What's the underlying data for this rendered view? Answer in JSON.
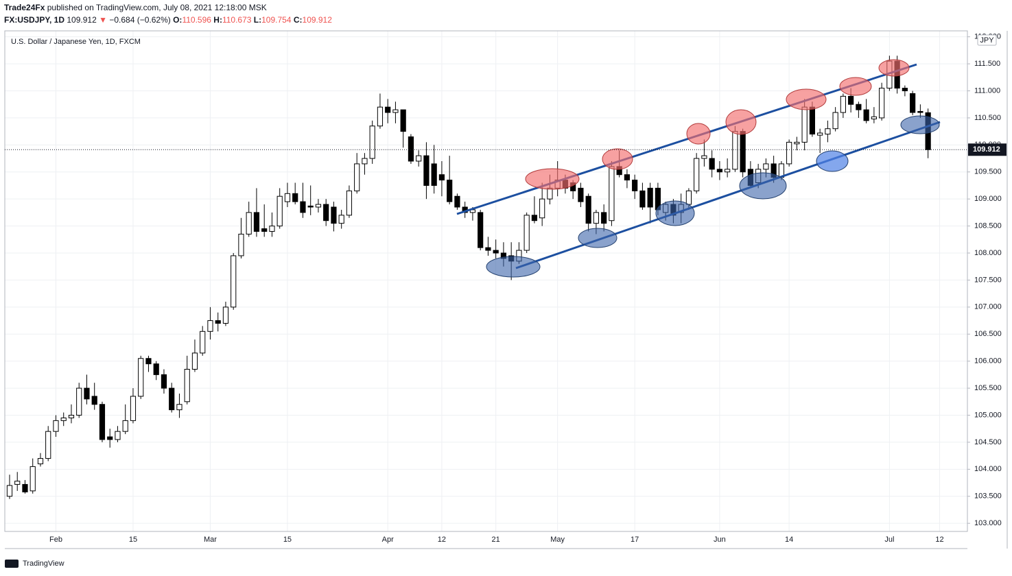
{
  "chart_data": {
    "type": "candlestick",
    "publisher": "Trade24Fx",
    "published": "published on TradingView.com, July 08, 2021 12:18:00 MSK",
    "symbol": "FX:USDJPY, 1D",
    "change_arrow": "▼",
    "change": "−0.684 (−0.62%)",
    "ohlc_labels": [
      "O:",
      "H:",
      "L:",
      "C:"
    ],
    "legend": "U.S. Dollar / Japanese Yen, 1D, FXCM",
    "currency": "JPY",
    "brand": "TradingView",
    "up_color": "#ffffff",
    "down_color": "#000000",
    "grid": true,
    "open": [
      103.5,
      103.72,
      103.72,
      103.6,
      104.1,
      104.2,
      104.7,
      104.9,
      104.95,
      105.0,
      105.5,
      105.35,
      105.2,
      104.6,
      104.55,
      104.7,
      104.9,
      105.35,
      106.05,
      105.95,
      105.75,
      105.5,
      105.1,
      105.25,
      105.85,
      106.15,
      106.55,
      106.75,
      106.7,
      107.0,
      107.95,
      108.35,
      108.75,
      108.45,
      108.4,
      108.5,
      108.95,
      109.1,
      108.95,
      108.87,
      108.85,
      108.9,
      108.85,
      108.55,
      108.7,
      109.15,
      109.65,
      109.75,
      110.35,
      110.7,
      110.6,
      110.65,
      110.15,
      109.7,
      109.8,
      109.65,
      109.45,
      109.35,
      109.05,
      108.85,
      108.75,
      108.75,
      108.1,
      108.05,
      108.0,
      107.95,
      107.85,
      108.05,
      108.7,
      108.65,
      109.0,
      109.2,
      109.35,
      109.3,
      109.2,
      109.05,
      108.55,
      108.75,
      108.6,
      109.6,
      109.45,
      109.35,
      109.15,
      109.2,
      109.2,
      108.75,
      108.9,
      108.75,
      108.9,
      109.15,
      109.75,
      109.75,
      109.55,
      109.5,
      109.55,
      110.25,
      109.55,
      109.3,
      109.55,
      109.65,
      109.4,
      109.65,
      110.02,
      110.05,
      110.7,
      110.18,
      110.2,
      110.3,
      110.6,
      110.9,
      110.75,
      110.65,
      110.48,
      110.5,
      111.05,
      111.55,
      111.05,
      110.95,
      110.62,
      110.596
    ],
    "high": [
      103.9,
      103.95,
      103.8,
      104.2,
      104.3,
      104.8,
      105.0,
      105.05,
      105.2,
      105.6,
      105.75,
      105.6,
      105.25,
      104.75,
      104.8,
      105.2,
      105.5,
      106.1,
      106.1,
      106.0,
      105.85,
      105.6,
      105.4,
      106.1,
      106.4,
      106.65,
      107.0,
      106.9,
      107.1,
      108.0,
      108.65,
      108.95,
      109.2,
      108.9,
      108.75,
      109.2,
      109.3,
      109.3,
      109.3,
      109.25,
      109.0,
      109.0,
      108.95,
      108.8,
      109.25,
      109.85,
      109.85,
      110.45,
      110.95,
      110.85,
      110.8,
      110.65,
      110.2,
      109.9,
      110.05,
      110.0,
      109.7,
      109.8,
      109.1,
      108.95,
      108.85,
      108.8,
      108.3,
      108.25,
      108.2,
      108.2,
      108.2,
      108.75,
      109.05,
      109.3,
      109.45,
      109.7,
      109.45,
      109.35,
      109.3,
      109.1,
      108.8,
      108.9,
      109.7,
      109.9,
      109.55,
      109.45,
      109.3,
      109.3,
      109.3,
      108.95,
      109.0,
      109.1,
      109.2,
      109.85,
      110.1,
      109.9,
      109.7,
      109.75,
      110.35,
      110.3,
      109.7,
      109.65,
      109.75,
      109.8,
      109.7,
      110.1,
      110.15,
      110.85,
      110.8,
      110.3,
      110.45,
      110.7,
      110.95,
      111.05,
      110.8,
      110.85,
      110.7,
      111.15,
      111.65,
      111.65,
      111.1,
      111.0,
      110.75,
      110.673
    ],
    "low": [
      103.45,
      103.6,
      103.55,
      103.55,
      104.05,
      104.15,
      104.6,
      104.8,
      104.85,
      104.95,
      105.2,
      105.1,
      104.5,
      104.4,
      104.5,
      104.65,
      104.85,
      105.3,
      105.8,
      105.65,
      105.4,
      105.05,
      104.95,
      105.2,
      105.8,
      106.1,
      106.4,
      106.55,
      106.65,
      106.95,
      107.9,
      108.3,
      108.3,
      108.3,
      108.3,
      108.45,
      108.85,
      108.9,
      108.65,
      108.7,
      108.75,
      108.5,
      108.4,
      108.45,
      108.65,
      109.1,
      109.45,
      109.65,
      110.3,
      110.4,
      110.4,
      109.95,
      109.65,
      109.6,
      109.0,
      109.1,
      109.05,
      108.9,
      108.8,
      108.65,
      108.6,
      108.05,
      107.95,
      107.9,
      107.75,
      107.5,
      107.8,
      108.0,
      108.55,
      108.5,
      108.9,
      109.05,
      109.1,
      109.0,
      108.85,
      108.4,
      108.35,
      108.4,
      108.5,
      109.4,
      109.2,
      109.0,
      108.8,
      108.55,
      108.7,
      108.6,
      108.55,
      108.55,
      108.8,
      109.1,
      109.6,
      109.4,
      109.35,
      109.4,
      109.5,
      109.4,
      109.2,
      109.2,
      109.4,
      109.3,
      109.35,
      109.6,
      109.9,
      109.9,
      110.15,
      109.85,
      110.05,
      110.25,
      110.5,
      110.6,
      110.5,
      110.4,
      110.4,
      110.45,
      111.0,
      110.95,
      110.9,
      110.55,
      110.5,
      109.754
    ],
    "close": [
      103.7,
      103.78,
      103.58,
      104.05,
      104.2,
      104.7,
      104.9,
      104.95,
      105.0,
      105.5,
      105.3,
      105.2,
      104.55,
      104.55,
      104.7,
      104.9,
      105.35,
      106.05,
      105.95,
      105.75,
      105.5,
      105.1,
      105.2,
      105.85,
      106.15,
      106.55,
      106.75,
      106.7,
      107.0,
      107.95,
      108.35,
      108.75,
      108.4,
      108.4,
      108.5,
      109.05,
      109.1,
      108.95,
      108.75,
      108.85,
      108.9,
      108.6,
      108.55,
      108.7,
      109.15,
      109.65,
      109.75,
      110.35,
      110.7,
      110.6,
      110.65,
      110.25,
      109.7,
      109.8,
      109.25,
      109.25,
      109.35,
      108.95,
      108.85,
      108.75,
      108.8,
      108.1,
      108.05,
      108.0,
      107.9,
      107.85,
      108.05,
      108.7,
      108.6,
      109.0,
      109.2,
      109.35,
      109.2,
      109.15,
      108.95,
      108.55,
      108.75,
      108.55,
      109.6,
      109.45,
      109.35,
      109.15,
      108.85,
      108.85,
      108.8,
      108.9,
      108.7,
      108.9,
      109.15,
      109.75,
      109.8,
      109.55,
      109.5,
      109.55,
      110.25,
      109.5,
      109.25,
      109.55,
      109.65,
      109.4,
      109.65,
      110.05,
      110.05,
      110.7,
      110.2,
      110.22,
      110.3,
      110.6,
      110.9,
      110.75,
      110.65,
      110.45,
      110.52,
      111.05,
      111.55,
      111.05,
      111.0,
      110.6,
      110.6,
      109.912
    ],
    "ylim": [
      102.85,
      112.11
    ],
    "yticks": [
      {
        "value": 103,
        "label": "103.000"
      },
      {
        "value": 103.5,
        "label": "103.500"
      },
      {
        "value": 104,
        "label": "104.000"
      },
      {
        "value": 104.5,
        "label": "104.500"
      },
      {
        "value": 105,
        "label": "105.000"
      },
      {
        "value": 105.5,
        "label": "105.500"
      },
      {
        "value": 106,
        "label": "106.000"
      },
      {
        "value": 106.5,
        "label": "106.500"
      },
      {
        "value": 107,
        "label": "107.000"
      },
      {
        "value": 107.5,
        "label": "107.500"
      },
      {
        "value": 108,
        "label": "108.000"
      },
      {
        "value": 108.5,
        "label": "108.500"
      },
      {
        "value": 109,
        "label": "109.000"
      },
      {
        "value": 109.5,
        "label": "109.500"
      },
      {
        "value": 110,
        "label": "110.000"
      },
      {
        "value": 110.5,
        "label": "110.500"
      },
      {
        "value": 111,
        "label": "111.000"
      },
      {
        "value": 111.5,
        "label": "111.500"
      },
      {
        "value": 112,
        "label": "112.000"
      }
    ],
    "xlim": [
      -0.62,
      124.1
    ],
    "xticks": [
      {
        "value": 6,
        "label": "Feb"
      },
      {
        "value": 16,
        "label": "15"
      },
      {
        "value": 26,
        "label": "Mar"
      },
      {
        "value": 36,
        "label": "15"
      },
      {
        "value": 49,
        "label": "Apr"
      },
      {
        "value": 56,
        "label": "12"
      },
      {
        "value": 63,
        "label": "21"
      },
      {
        "value": 71,
        "label": "May"
      },
      {
        "value": 81,
        "label": "17"
      },
      {
        "value": 92,
        "label": "Jun"
      },
      {
        "value": 101,
        "label": "14"
      },
      {
        "value": 114,
        "label": "Jul"
      },
      {
        "value": 120.5,
        "label": "12"
      }
    ]
  }
}
